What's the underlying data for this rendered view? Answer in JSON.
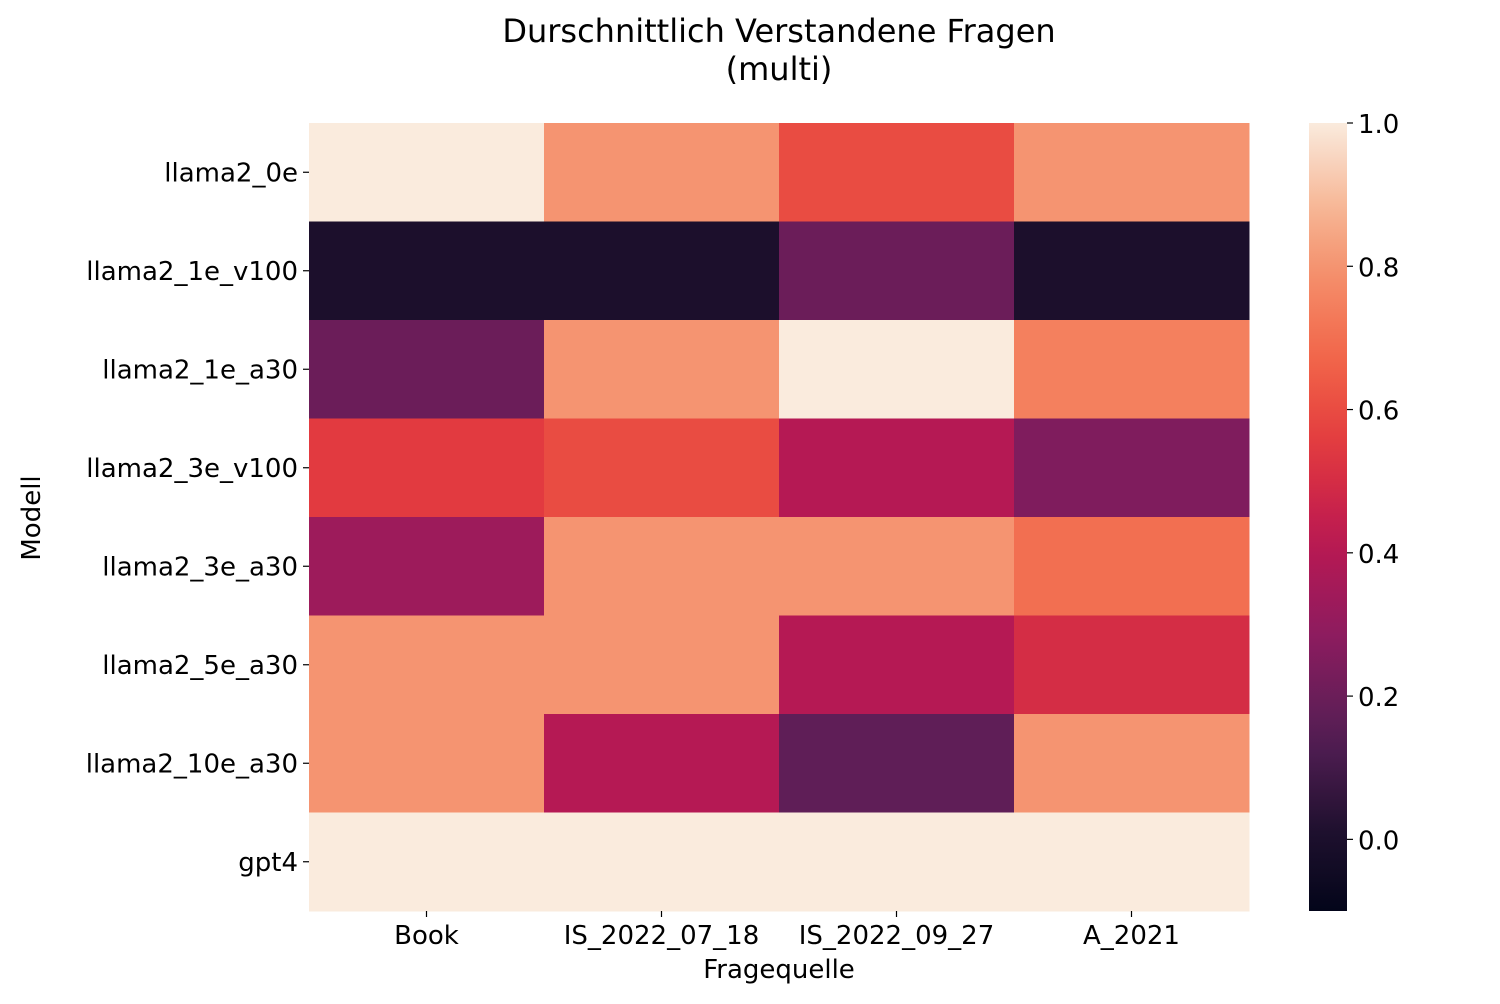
{
  "chart_data": {
    "type": "heatmap",
    "title": "Durschnittlich Verstandene Fragen",
    "subtitle": "(multi)",
    "xlabel": "Fragequelle",
    "ylabel": "Modell",
    "x_categories": [
      "Book",
      "IS_2022_07_18",
      "IS_2022_09_27",
      "A_2021"
    ],
    "y_categories": [
      "llama2_0e",
      "llama2_1e_v100",
      "llama2_1e_a30",
      "llama2_3e_v100",
      "llama2_3e_a30",
      "llama2_5e_a30",
      "llama2_10e_a30",
      "gpt4"
    ],
    "values": [
      [
        1.0,
        0.8,
        0.6,
        0.8
      ],
      [
        0.0,
        0.0,
        0.2,
        0.0
      ],
      [
        0.2,
        0.8,
        1.0,
        0.75
      ],
      [
        0.55,
        0.6,
        0.4,
        0.25
      ],
      [
        0.33,
        0.8,
        0.8,
        0.7
      ],
      [
        0.8,
        0.8,
        0.4,
        0.5
      ],
      [
        0.8,
        0.4,
        0.17,
        0.8
      ],
      [
        1.0,
        1.0,
        1.0,
        1.0
      ]
    ],
    "colorbar": {
      "min": -0.1,
      "max": 1.0,
      "ticks": [
        1.0,
        0.8,
        0.6,
        0.4,
        0.2,
        0.0
      ],
      "tick_labels": [
        "1.0",
        "0.8",
        "0.6",
        "0.4",
        "0.2",
        "0.0"
      ],
      "colormap": "rocket",
      "position": "right"
    }
  }
}
